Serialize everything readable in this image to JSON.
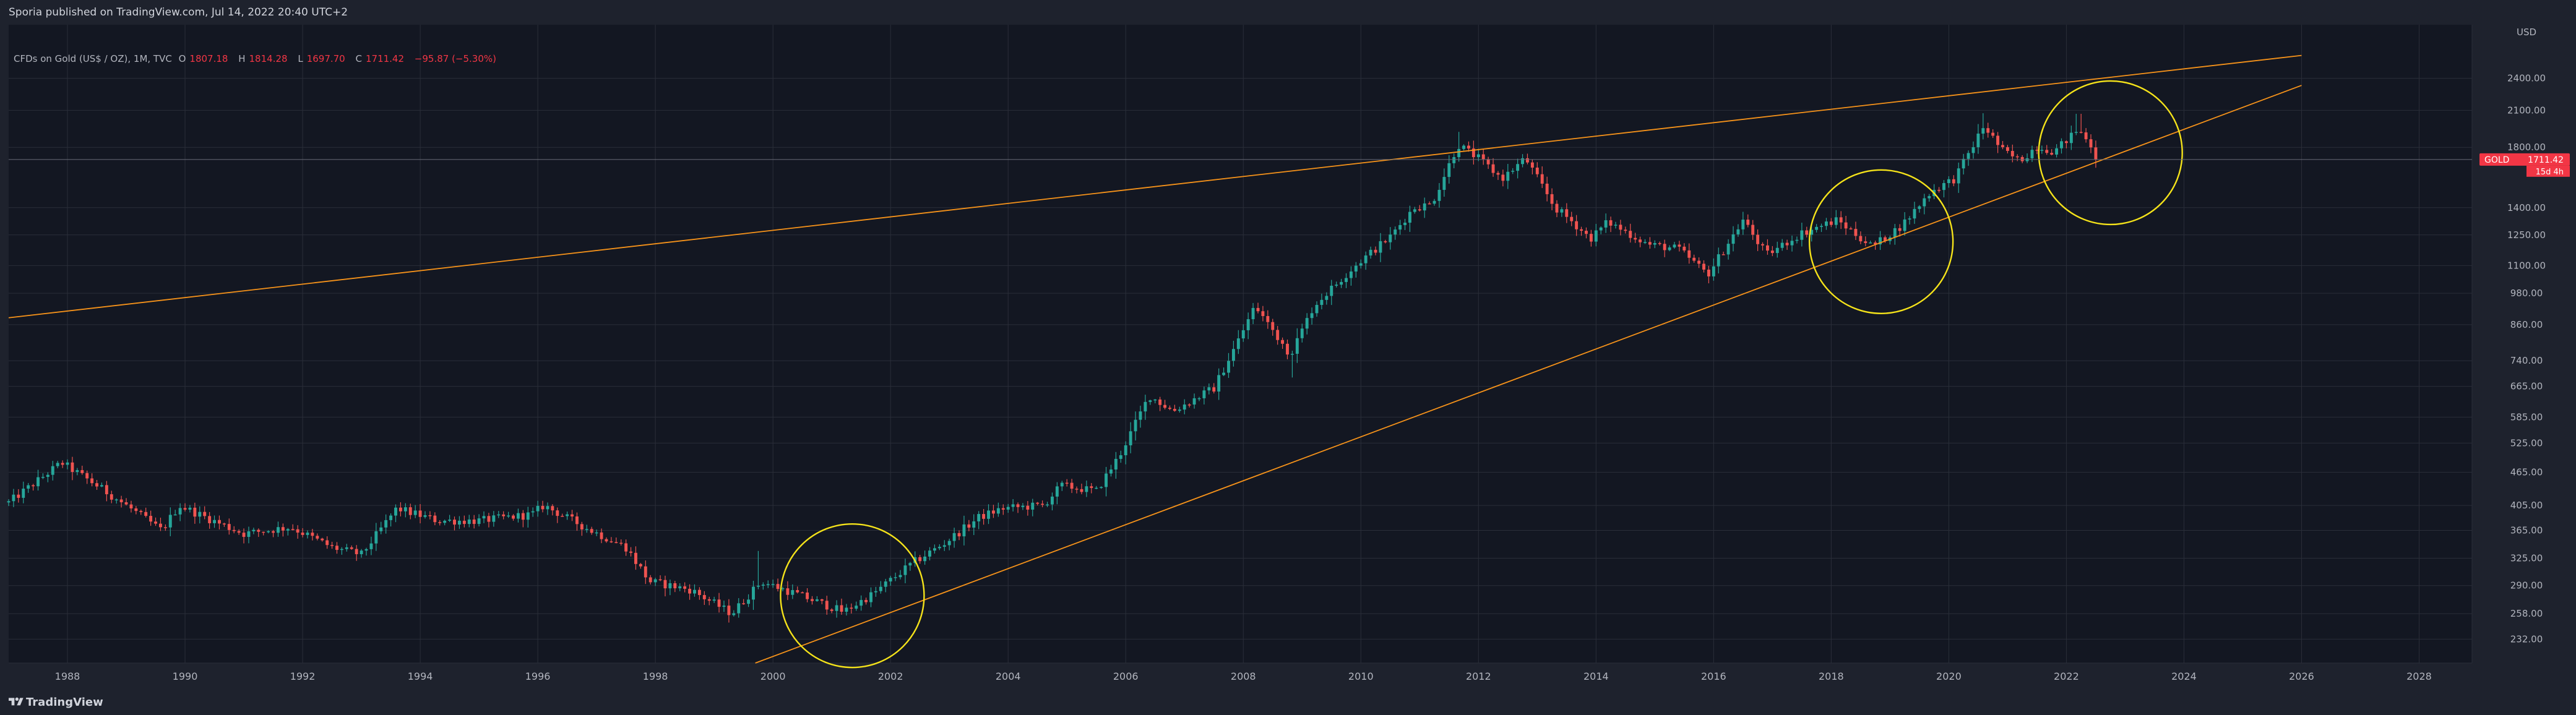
{
  "header": {
    "published_text": "Sporia published on TradingView.com, Jul 14, 2022 20:40 UTC+2"
  },
  "legend": {
    "title": "CFDs on Gold (US$ / OZ), 1M, TVC",
    "o_label": "O",
    "o_value": "1807.18",
    "h_label": "H",
    "h_value": "1814.28",
    "l_label": "L",
    "l_value": "1697.70",
    "c_label": "C",
    "c_value": "1711.42",
    "change": "−95.87 (−5.30%)"
  },
  "footer": {
    "brand": "TradingView"
  },
  "colors": {
    "background": "#131722",
    "panel": "#1e222d",
    "up": "#26a69a",
    "down": "#ef5350",
    "trendline": "#f7931a",
    "circle": "#f5e31a",
    "price_label": "#f23645"
  },
  "chart_data": {
    "type": "candlestick",
    "timeframe": "1M",
    "symbol": "GOLD",
    "currency_label": "USD",
    "last_price_label": "1711.42",
    "countdown_label": "15d 4h",
    "y_scale": "log",
    "ylim": [
      210,
      3000
    ],
    "xlim": [
      1987.0,
      2028.9
    ],
    "grid": true,
    "y_ticks": [
      "232.00",
      "258.00",
      "290.00",
      "325.00",
      "365.00",
      "405.00",
      "465.00",
      "525.00",
      "585.00",
      "665.00",
      "740.00",
      "860.00",
      "980.00",
      "1100.00",
      "1250.00",
      "1400.00",
      "1800.00",
      "2100.00",
      "2400.00"
    ],
    "x_ticks": [
      "1988",
      "1990",
      "1992",
      "1994",
      "1996",
      "1998",
      "2000",
      "2002",
      "2004",
      "2006",
      "2008",
      "2010",
      "2012",
      "2014",
      "2016",
      "2018",
      "2020",
      "2022",
      "2024",
      "2026",
      "2028"
    ],
    "anchors": [
      [
        1987.0,
        410
      ],
      [
        1987.9,
        484
      ],
      [
        1988.5,
        440
      ],
      [
        1989.0,
        405
      ],
      [
        1989.6,
        365
      ],
      [
        1989.9,
        405
      ],
      [
        1990.6,
        375
      ],
      [
        1991.0,
        360
      ],
      [
        1991.8,
        370
      ],
      [
        1992.5,
        340
      ],
      [
        1993.0,
        330
      ],
      [
        1993.6,
        400
      ],
      [
        1994.3,
        380
      ],
      [
        1995.0,
        380
      ],
      [
        1995.9,
        390
      ],
      [
        1996.1,
        405
      ],
      [
        1996.9,
        365
      ],
      [
        1997.5,
        340
      ],
      [
        1997.9,
        295
      ],
      [
        1998.6,
        285
      ],
      [
        1999.3,
        258
      ],
      [
        1999.8,
        295
      ],
      [
        2000.4,
        280
      ],
      [
        2001.2,
        260
      ],
      [
        2001.7,
        280
      ],
      [
        2002.4,
        320
      ],
      [
        2002.9,
        345
      ],
      [
        2003.5,
        385
      ],
      [
        2003.9,
        400
      ],
      [
        2004.6,
        405
      ],
      [
        2004.9,
        440
      ],
      [
        2005.5,
        430
      ],
      [
        2005.9,
        500
      ],
      [
        2006.4,
        640
      ],
      [
        2006.8,
        600
      ],
      [
        2007.5,
        660
      ],
      [
        2007.9,
        800
      ],
      [
        2008.2,
        930
      ],
      [
        2008.8,
        760
      ],
      [
        2009.2,
        930
      ],
      [
        2009.9,
        1100
      ],
      [
        2010.5,
        1240
      ],
      [
        2010.9,
        1400
      ],
      [
        2011.2,
        1420
      ],
      [
        2011.65,
        1820
      ],
      [
        2012.0,
        1720
      ],
      [
        2012.4,
        1580
      ],
      [
        2012.8,
        1720
      ],
      [
        2013.3,
        1400
      ],
      [
        2013.6,
        1320
      ],
      [
        2013.9,
        1230
      ],
      [
        2014.2,
        1320
      ],
      [
        2014.9,
        1200
      ],
      [
        2015.4,
        1180
      ],
      [
        2015.9,
        1060
      ],
      [
        2016.5,
        1330
      ],
      [
        2016.9,
        1150
      ],
      [
        2017.5,
        1260
      ],
      [
        2018.1,
        1330
      ],
      [
        2018.7,
        1190
      ],
      [
        2019.2,
        1300
      ],
      [
        2019.7,
        1500
      ],
      [
        2020.1,
        1580
      ],
      [
        2020.6,
        1970
      ],
      [
        2020.9,
        1780
      ],
      [
        2021.2,
        1700
      ],
      [
        2021.5,
        1810
      ],
      [
        2021.8,
        1770
      ],
      [
        2022.2,
        1940
      ],
      [
        2022.45,
        1800
      ],
      [
        2022.55,
        1711
      ]
    ],
    "trendlines": [
      {
        "name": "upper",
        "points": [
          [
            1987.0,
            885
          ],
          [
            2026.0,
            2640
          ]
        ]
      },
      {
        "name": "lower",
        "points": [
          [
            1999.7,
            210
          ],
          [
            2026.0,
            2330
          ]
        ]
      }
    ],
    "circles": [
      {
        "name": "circle-2001",
        "x": 2001.35,
        "y": 278
      },
      {
        "name": "circle-2018",
        "x": 2018.85,
        "y": 1215
      },
      {
        "name": "circle-2022",
        "x": 2022.75,
        "y": 1760
      }
    ]
  }
}
